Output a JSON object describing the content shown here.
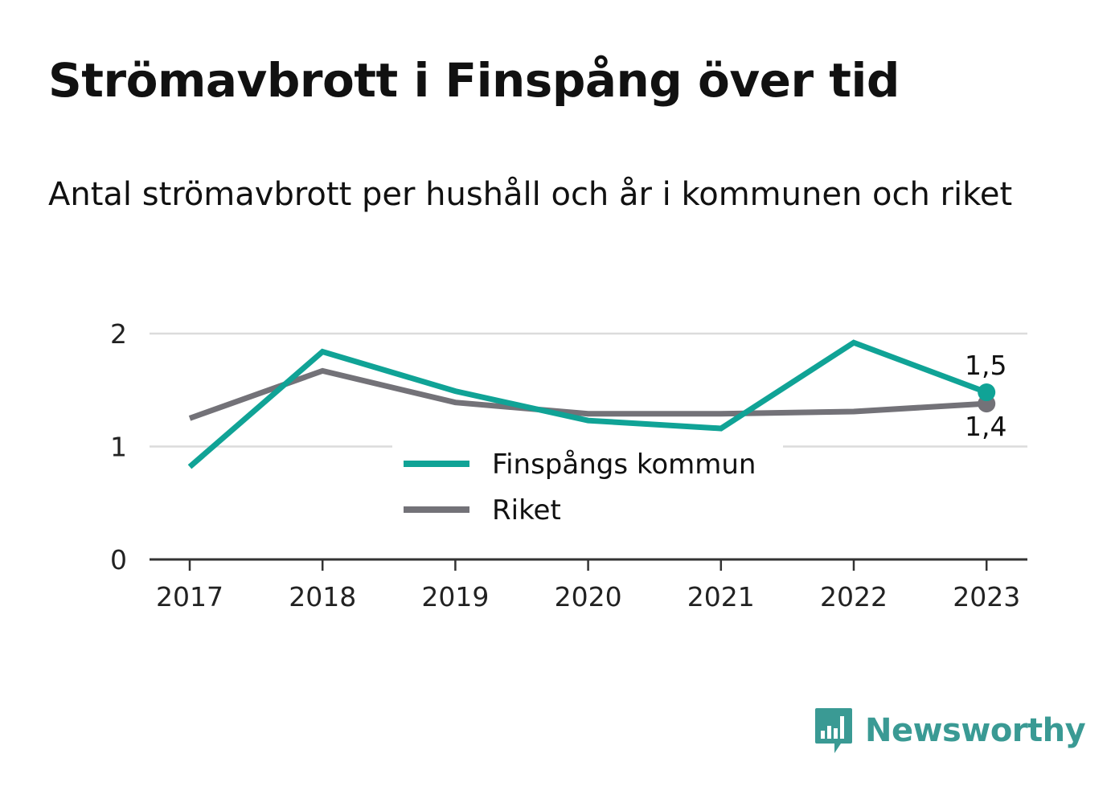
{
  "title": "Strömavbrott i Finspång över tid",
  "subtitle": "Antal strömavbrott per hushåll och år i kommunen och riket",
  "brand": {
    "name": "Newsworthy",
    "icon": "newsworthy-logo-icon",
    "color": "#3a9a94"
  },
  "chart_data": {
    "type": "line",
    "x": [
      "2017",
      "2018",
      "2019",
      "2020",
      "2021",
      "2022",
      "2023"
    ],
    "series": [
      {
        "name": "Finspångs kommun",
        "color": "#10a396",
        "values": [
          0.82,
          1.84,
          1.49,
          1.23,
          1.16,
          1.92,
          1.48
        ],
        "end_label": "1,5"
      },
      {
        "name": "Riket",
        "color": "#737278",
        "values": [
          1.25,
          1.67,
          1.39,
          1.29,
          1.29,
          1.31,
          1.38
        ],
        "end_label": "1,4"
      }
    ],
    "yticks": [
      "0",
      "1",
      "2"
    ],
    "ylim": [
      0,
      2
    ],
    "grid": true,
    "legend_position": "center"
  }
}
